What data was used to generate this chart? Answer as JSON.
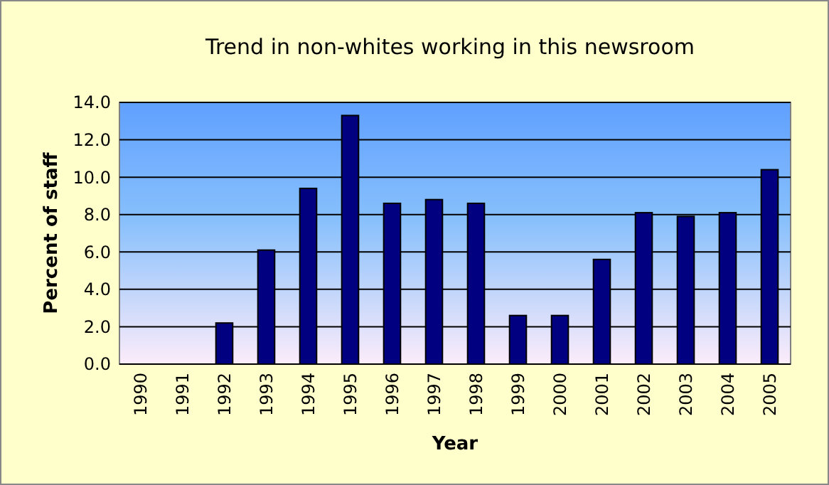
{
  "chart_data": {
    "type": "bar",
    "title": "Trend in non-whites working in this newsroom",
    "xlabel": "Year",
    "ylabel": "Percent of staff",
    "categories": [
      "1990",
      "1991",
      "1992",
      "1993",
      "1994",
      "1995",
      "1996",
      "1997",
      "1998",
      "1999",
      "2000",
      "2001",
      "2002",
      "2003",
      "2004",
      "2005"
    ],
    "values": [
      null,
      null,
      2.2,
      6.1,
      9.4,
      13.3,
      8.6,
      8.8,
      8.6,
      2.6,
      2.6,
      5.6,
      8.1,
      7.9,
      8.1,
      10.4
    ],
    "color": "#000080",
    "ylim": [
      0,
      14
    ],
    "yticks": [
      {
        "value": 0,
        "label": "0.0"
      },
      {
        "value": 2,
        "label": "2.0"
      },
      {
        "value": 4,
        "label": "4.0"
      },
      {
        "value": 6,
        "label": "6.0"
      },
      {
        "value": 8,
        "label": "8.0"
      },
      {
        "value": 10,
        "label": "10.0"
      },
      {
        "value": 12,
        "label": "12.0"
      },
      {
        "value": 14,
        "label": "14.0"
      }
    ],
    "grid": "y"
  }
}
